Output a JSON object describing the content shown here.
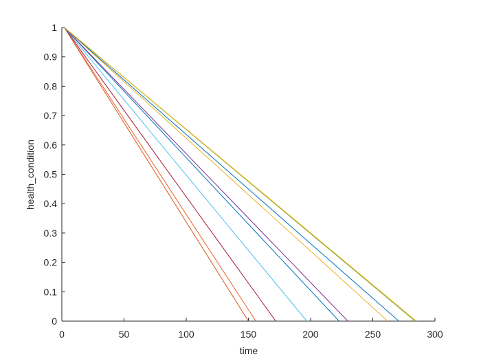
{
  "chart_data": {
    "type": "line",
    "xlabel": "time",
    "ylabel": "health_condition",
    "xlim": [
      0,
      300
    ],
    "xticks": [
      0,
      50,
      100,
      150,
      200,
      250,
      300
    ],
    "ylim": [
      0,
      1
    ],
    "yticks": [
      0,
      0.1,
      0.2,
      0.3,
      0.4,
      0.5,
      0.6,
      0.7,
      0.8,
      0.9,
      1
    ],
    "series": [
      {
        "color": "#D95319",
        "x": [
          2,
          150
        ],
        "values": [
          1,
          0
        ]
      },
      {
        "color": "#E8622A",
        "x": [
          2,
          156
        ],
        "values": [
          1,
          0
        ]
      },
      {
        "color": "#A2142F",
        "x": [
          2,
          172
        ],
        "values": [
          1,
          0
        ]
      },
      {
        "color": "#4DBEEE",
        "x": [
          2,
          197
        ],
        "values": [
          1,
          0
        ]
      },
      {
        "color": "#0072BD",
        "x": [
          2,
          223
        ],
        "values": [
          1,
          0
        ]
      },
      {
        "color": "#7E2F8E",
        "x": [
          2,
          230
        ],
        "values": [
          1,
          0
        ]
      },
      {
        "color": "#EDB120",
        "x": [
          2,
          262
        ],
        "values": [
          1,
          0
        ]
      },
      {
        "color": "#0072BD",
        "x": [
          2,
          271
        ],
        "values": [
          1,
          0
        ]
      },
      {
        "color": "#77AC30",
        "x": [
          2,
          284
        ],
        "values": [
          1,
          0
        ]
      },
      {
        "color": "#EDB120",
        "x": [
          2,
          285
        ],
        "values": [
          1,
          0
        ]
      }
    ]
  }
}
